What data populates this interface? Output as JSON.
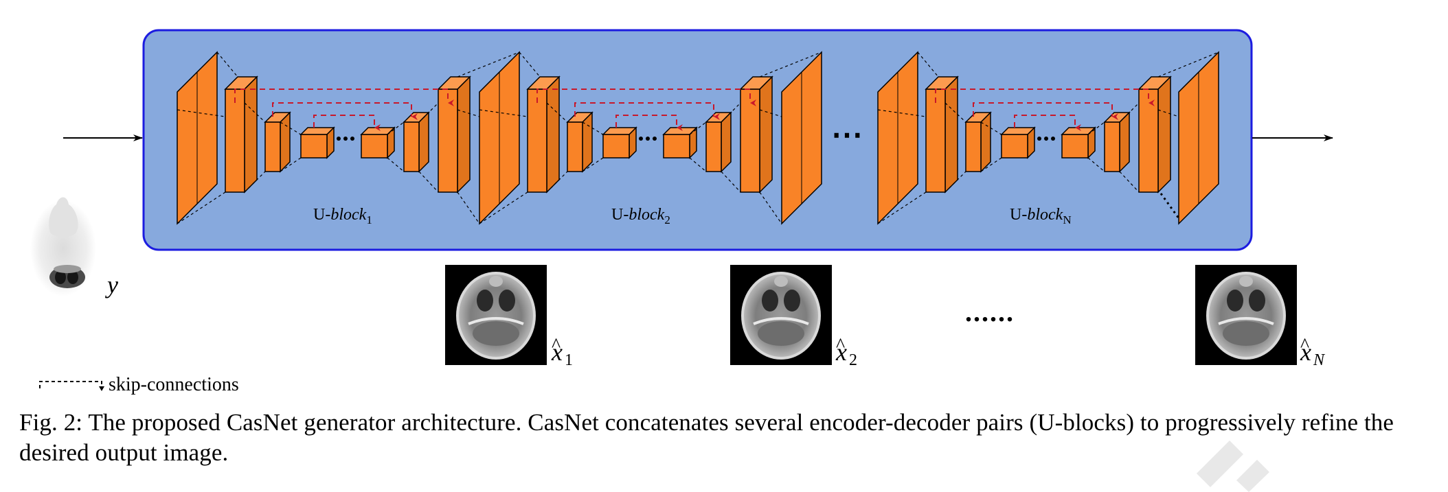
{
  "figure": {
    "input_symbol": "y",
    "block_labels": [
      {
        "prefix": "U-",
        "name": "block",
        "sub": "1"
      },
      {
        "prefix": "U-",
        "name": "block",
        "sub": "2"
      },
      {
        "prefix": "U-",
        "name": "block",
        "sub": "N"
      }
    ],
    "output_labels": [
      {
        "base": "x",
        "sub": "1"
      },
      {
        "base": "x",
        "sub": "2"
      },
      {
        "base": "x",
        "sub": "N"
      }
    ],
    "between_dots": "......",
    "block_ellipsis": "⋯",
    "legend_label": "skip-connections"
  },
  "caption": {
    "text": "Fig. 2: The proposed CasNet generator architecture. CasNet concatenates several encoder-decoder pairs (U-blocks) to progressively refine the desired output image."
  },
  "colors": {
    "container_fill": "#87a9dd",
    "container_border": "#1c1ce0",
    "layer_front": "#f98327",
    "layer_top": "#fc9b4f",
    "layer_side": "#e0741c",
    "skip_connection": "#c8182a",
    "scan_background": "#000000"
  },
  "icons": {
    "input_arrow": "arrow-right-icon",
    "output_arrow": "arrow-right-icon",
    "skip_connection_legend": "dashed-bracket-icon"
  }
}
